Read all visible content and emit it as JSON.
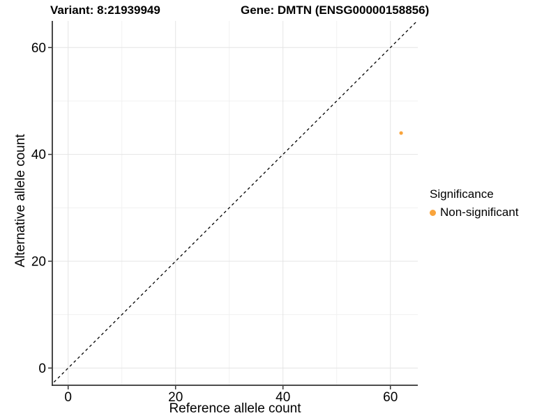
{
  "chart_data": {
    "type": "scatter",
    "title_left": "Variant: 8:21939949",
    "title_right": "Gene: DMTN (ENSG00000158856)",
    "xlabel": "Reference allele count",
    "ylabel": "Alternative allele count",
    "xlim": [
      -3,
      65
    ],
    "ylim": [
      -3.3,
      65
    ],
    "xticks": [
      0,
      20,
      40,
      60
    ],
    "yticks": [
      0,
      20,
      40,
      60
    ],
    "minor_xticks": [
      10,
      30,
      50
    ],
    "minor_yticks": [
      10,
      30,
      50
    ],
    "grid": true,
    "identity_line": {
      "style": "dashed",
      "slope": 1,
      "intercept": 0,
      "color": "#000000"
    },
    "points": [
      {
        "x": 62,
        "y": 44,
        "series": "Non-significant"
      }
    ],
    "legend": {
      "title": "Significance",
      "position": "right",
      "items": [
        {
          "label": "Non-significant",
          "color": "#F9A43C"
        }
      ]
    },
    "colors": {
      "background": "#FFFFFF",
      "axis_line": "#333333",
      "tick_mark": "#333333",
      "grid_major": "#E4E4E4",
      "grid_minor": "#F1F1F1",
      "text": "#000000"
    }
  }
}
